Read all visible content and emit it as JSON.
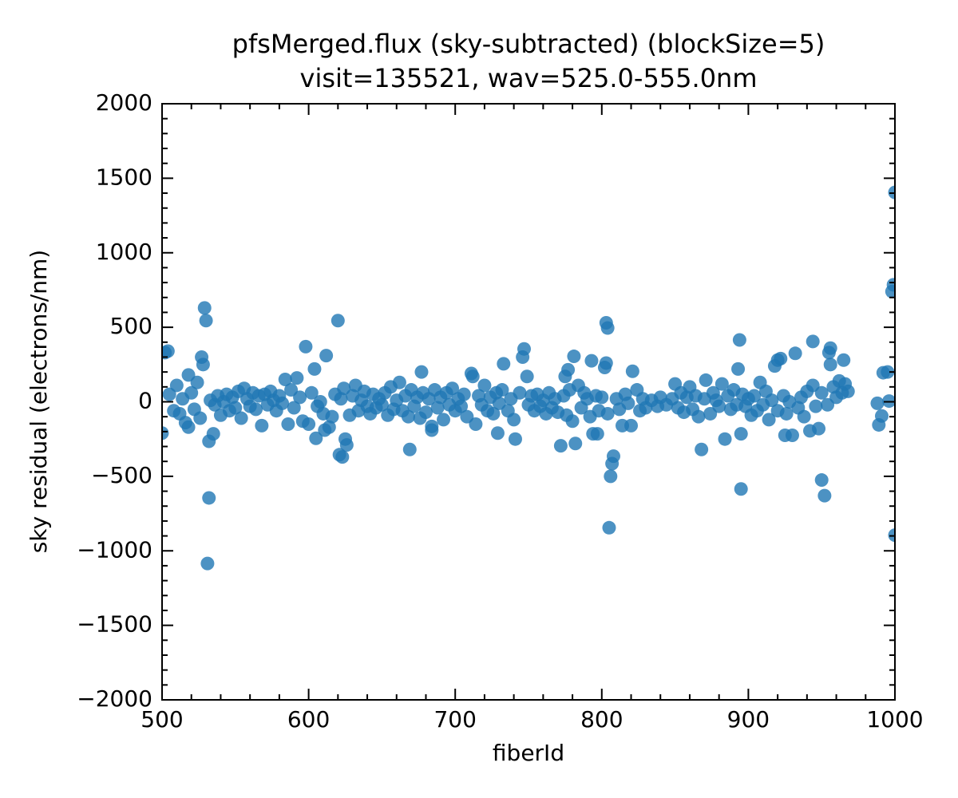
{
  "chart_data": {
    "type": "scatter",
    "title": "pfsMerged.flux (sky-subtracted) (blockSize=5)",
    "subtitle": "visit=135521, wav=525.0-555.0nm",
    "x_label": "fiberId",
    "y_label": "sky residual (electrons/nm)",
    "xlim": [
      500,
      1000
    ],
    "ylim": [
      -2000,
      2000
    ],
    "xticks": [
      500,
      600,
      700,
      800,
      900,
      1000
    ],
    "yticks": [
      {
        "value": -2000,
        "label": "−2000"
      },
      {
        "value": -1500,
        "label": "−1500"
      },
      {
        "value": -1000,
        "label": "−1000"
      },
      {
        "value": -500,
        "label": "−500"
      },
      0,
      500,
      1000,
      1500,
      2000
    ],
    "series": [
      {
        "color": "#1f77b4",
        "x": [
          502,
          504,
          500,
          529,
          530,
          531,
          532,
          532,
          535,
          527,
          528,
          518,
          598,
          612,
          604,
          620,
          621,
          623,
          625,
          626,
          605,
          611,
          669,
          677,
          684,
          711,
          729,
          733,
          741,
          746,
          747,
          749,
          772,
          775,
          777,
          781,
          782,
          793,
          794,
          797,
          802,
          803,
          803,
          804,
          805,
          806,
          807,
          808,
          821,
          820,
          868,
          871,
          884,
          894,
          893,
          895,
          895,
          920,
          922,
          918,
          925,
          930,
          932,
          944,
          942,
          948,
          950,
          952,
          955,
          956,
          956,
          965,
          988,
          989,
          992,
          995,
          998,
          999,
          1000,
          1000,
          991,
          996,
          505,
          508,
          510,
          512,
          514,
          516,
          518,
          520,
          522,
          524,
          526,
          533,
          536,
          538,
          540,
          542,
          544,
          546,
          548,
          550,
          552,
          554,
          556,
          558,
          560,
          562,
          564,
          566,
          568,
          570,
          572,
          574,
          576,
          578,
          580,
          582,
          584,
          586,
          588,
          590,
          592,
          594,
          596,
          600,
          602,
          606,
          608,
          610,
          614,
          616,
          618,
          622,
          624,
          628,
          630,
          632,
          634,
          636,
          638,
          640,
          642,
          644,
          646,
          648,
          650,
          652,
          654,
          656,
          658,
          660,
          662,
          664,
          666,
          668,
          670,
          672,
          674,
          676,
          678,
          680,
          682,
          684,
          686,
          688,
          690,
          692,
          694,
          696,
          698,
          700,
          702,
          704,
          706,
          708,
          712,
          714,
          716,
          718,
          720,
          722,
          724,
          726,
          728,
          730,
          732,
          736,
          738,
          740,
          744,
          750,
          752,
          754,
          756,
          758,
          760,
          762,
          764,
          766,
          768,
          770,
          774,
          776,
          778,
          780,
          784,
          786,
          788,
          790,
          792,
          796,
          798,
          800,
          804,
          810,
          812,
          814,
          816,
          818,
          824,
          826,
          828,
          830,
          834,
          838,
          840,
          844,
          848,
          850,
          852,
          854,
          856,
          858,
          860,
          862,
          864,
          866,
          870,
          874,
          876,
          878,
          880,
          882,
          886,
          888,
          890,
          892,
          896,
          898,
          900,
          902,
          904,
          906,
          908,
          910,
          912,
          914,
          916,
          920,
          924,
          926,
          928,
          934,
          936,
          938,
          940,
          944,
          946,
          950,
          954,
          958,
          960,
          962,
          964,
          966,
          968
        ],
        "values": [
          330,
          340,
          -210,
          630,
          545,
          -1085,
          -645,
          -265,
          -215,
          300,
          250,
          180,
          370,
          310,
          220,
          545,
          -355,
          -370,
          -250,
          -290,
          -245,
          -190,
          -320,
          200,
          -165,
          190,
          -210,
          255,
          -250,
          300,
          355,
          170,
          -295,
          170,
          215,
          305,
          -280,
          275,
          -215,
          -215,
          230,
          260,
          530,
          495,
          -845,
          -500,
          -415,
          -365,
          205,
          -160,
          -320,
          145,
          -250,
          415,
          220,
          -215,
          -585,
          280,
          290,
          240,
          -225,
          -225,
          325,
          405,
          -195,
          -180,
          -525,
          -630,
          330,
          360,
          250,
          280,
          -10,
          -155,
          195,
          200,
          740,
          785,
          1405,
          -895,
          -95,
          5,
          50,
          -60,
          110,
          -80,
          20,
          -140,
          -170,
          60,
          -50,
          130,
          -110,
          10,
          -20,
          40,
          -90,
          0,
          50,
          -60,
          30,
          -40,
          70,
          -110,
          90,
          20,
          -30,
          60,
          -50,
          40,
          -160,
          50,
          -20,
          70,
          10,
          -60,
          40,
          -10,
          150,
          -150,
          80,
          -40,
          160,
          30,
          -130,
          -150,
          60,
          -30,
          0,
          -80,
          -170,
          -100,
          50,
          20,
          90,
          -90,
          40,
          110,
          -60,
          10,
          70,
          -30,
          -80,
          50,
          -40,
          20,
          -20,
          60,
          -90,
          100,
          -50,
          10,
          130,
          -60,
          40,
          -100,
          80,
          -30,
          30,
          -110,
          60,
          -70,
          20,
          -190,
          80,
          -40,
          30,
          -120,
          60,
          -20,
          90,
          -60,
          20,
          -30,
          50,
          -100,
          170,
          -150,
          40,
          -20,
          110,
          -60,
          30,
          -80,
          60,
          -10,
          80,
          -60,
          20,
          -120,
          60,
          -20,
          40,
          -60,
          50,
          -30,
          10,
          -80,
          60,
          -40,
          20,
          -70,
          40,
          -90,
          80,
          -130,
          110,
          -40,
          60,
          20,
          -100,
          40,
          -60,
          30,
          -80,
          20,
          -50,
          -160,
          50,
          -10,
          80,
          -60,
          20,
          -40,
          10,
          -30,
          30,
          -20,
          20,
          120,
          -40,
          60,
          -70,
          30,
          100,
          -50,
          40,
          -100,
          20,
          -80,
          60,
          10,
          -30,
          120,
          40,
          -50,
          80,
          -20,
          50,
          -30,
          20,
          -90,
          40,
          -60,
          130,
          -20,
          70,
          -120,
          10,
          -60,
          40,
          -80,
          0,
          -40,
          30,
          -100,
          70,
          110,
          -30,
          60,
          -20,
          100,
          30,
          140,
          60,
          120,
          70
        ]
      }
    ]
  }
}
